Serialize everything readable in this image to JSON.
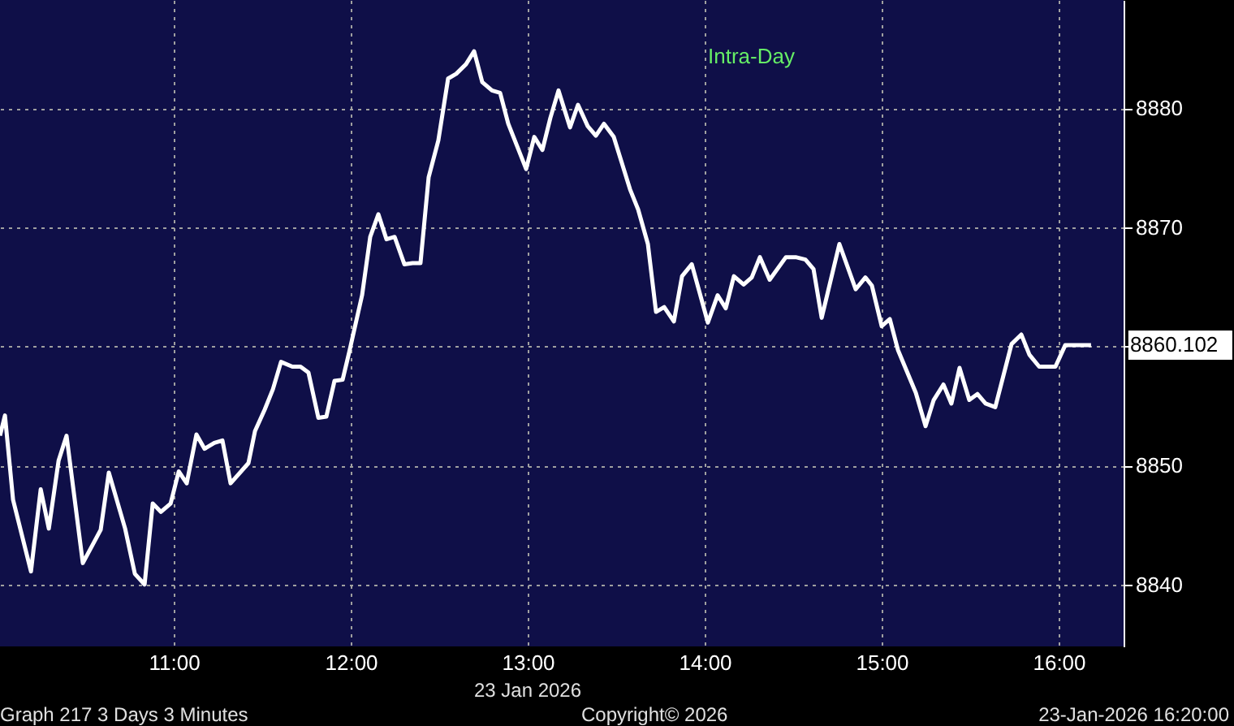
{
  "chart_data": {
    "type": "line",
    "title": "Intra-Day",
    "x": [
      10.018,
      10.046,
      10.092,
      10.193,
      10.248,
      10.294,
      10.349,
      10.394,
      10.486,
      10.587,
      10.633,
      10.725,
      10.78,
      10.835,
      10.881,
      10.927,
      10.982,
      11.028,
      11.073,
      11.128,
      11.174,
      11.229,
      11.275,
      11.321,
      11.422,
      11.459,
      11.514,
      11.56,
      11.606,
      11.67,
      11.716,
      11.761,
      11.817,
      11.862,
      11.908,
      11.954,
      11.991,
      12.064,
      12.11,
      12.156,
      12.202,
      12.248,
      12.303,
      12.349,
      12.394,
      12.44,
      12.495,
      12.55,
      12.596,
      12.651,
      12.697,
      12.743,
      12.798,
      12.844,
      12.89,
      12.991,
      13.037,
      13.083,
      13.128,
      13.174,
      13.239,
      13.284,
      13.339,
      13.385,
      13.431,
      13.486,
      13.578,
      13.624,
      13.679,
      13.725,
      13.771,
      13.826,
      13.872,
      13.927,
      14.018,
      14.073,
      14.119,
      14.165,
      14.22,
      14.266,
      14.312,
      14.367,
      14.459,
      14.514,
      14.569,
      14.615,
      14.661,
      14.761,
      14.853,
      14.908,
      14.945,
      15.0,
      15.046,
      15.092,
      15.193,
      15.248,
      15.294,
      15.349,
      15.394,
      15.44,
      15.495,
      15.541,
      15.587,
      15.642,
      15.734,
      15.789,
      15.835,
      15.89,
      15.982,
      16.037,
      16.183
    ],
    "series": [
      {
        "color": "#ffffff",
        "values": [
          8852.5,
          8854.2,
          8847.1,
          8841.1,
          8848.0,
          8844.7,
          8850.4,
          8852.5,
          8841.8,
          8844.6,
          8849.4,
          8844.7,
          8840.9,
          8840.0,
          8846.8,
          8846.1,
          8846.8,
          8849.5,
          8848.5,
          8852.6,
          8851.4,
          8851.9,
          8852.1,
          8848.5,
          8850.2,
          8852.9,
          8854.7,
          8856.4,
          8858.7,
          8858.3,
          8858.3,
          8857.8,
          8854.0,
          8854.1,
          8857.1,
          8857.2,
          8859.5,
          8864.3,
          8869.2,
          8871.1,
          8869.0,
          8869.2,
          8866.9,
          8867.0,
          8867.0,
          8874.2,
          8877.3,
          8882.5,
          8882.9,
          8883.7,
          8884.8,
          8882.2,
          8881.5,
          8881.3,
          8878.7,
          8874.9,
          8877.6,
          8876.5,
          8879.2,
          8881.5,
          8878.4,
          8880.3,
          8878.5,
          8877.7,
          8878.7,
          8877.6,
          8873.2,
          8871.5,
          8868.6,
          8862.9,
          8863.3,
          8862.1,
          8865.9,
          8866.9,
          8862.0,
          8864.3,
          8863.2,
          8865.9,
          8865.2,
          8865.8,
          8867.5,
          8865.6,
          8867.5,
          8867.5,
          8867.3,
          8866.5,
          8862.4,
          8868.6,
          8864.8,
          8865.8,
          8865.1,
          8861.7,
          8862.3,
          8859.7,
          8856.1,
          8853.3,
          8855.5,
          8856.8,
          8855.2,
          8858.2,
          8855.5,
          8856.0,
          8855.2,
          8854.9,
          8860.2,
          8861.0,
          8859.3,
          8858.3,
          8858.3,
          8860.1,
          8860.1
        ]
      }
    ],
    "xlim": [
      10.018,
      16.367
    ],
    "ylim": [
      8834.8,
      8889.1
    ],
    "xticks": [
      {
        "value": 11,
        "label": "11:00"
      },
      {
        "value": 12,
        "label": "12:00"
      },
      {
        "value": 13,
        "label": "13:00"
      },
      {
        "value": 14,
        "label": "14:00"
      },
      {
        "value": 15,
        "label": "15:00"
      },
      {
        "value": 16,
        "label": "16:00"
      }
    ],
    "yticks": [
      8840,
      8850,
      {
        "value": 8860,
        "label": null
      },
      8870,
      8880
    ],
    "grid": true,
    "marker": "none",
    "line_style": "solid",
    "annotations": [
      {
        "text": "8860.102",
        "x": 16.183,
        "y": 8860.1
      },
      "23 Jan 2026",
      "Graph 217 3 Days 3 Minutes",
      "Copyright© 2026",
      "23-Jan-2026 16:20:00"
    ]
  }
}
